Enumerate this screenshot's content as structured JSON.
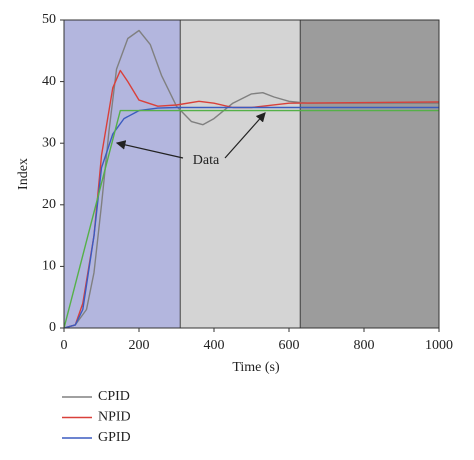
{
  "chart_data": {
    "type": "line",
    "x_label": "Time (s)",
    "y_label": "Index",
    "xlim": [
      0,
      1000
    ],
    "xticks": [
      0,
      200,
      400,
      600,
      800,
      1000
    ],
    "ylim": [
      0,
      50
    ],
    "yticks": [
      0,
      10,
      20,
      30,
      40,
      50
    ],
    "regions": [
      {
        "xlim": [
          0,
          310
        ],
        "color": "#b3b6de"
      },
      {
        "xlim": [
          310,
          630
        ],
        "color": "#d4d4d4"
      },
      {
        "xlim": [
          630,
          1000
        ],
        "color": "#9c9c9c"
      }
    ],
    "annotation": "Data",
    "series": [
      {
        "name": "CPID",
        "color": "#808080",
        "x": [
          0,
          30,
          60,
          80,
          100,
          120,
          140,
          170,
          200,
          230,
          260,
          300,
          340,
          370,
          400,
          450,
          500,
          530,
          560,
          600,
          650,
          1000
        ],
        "values": [
          0,
          0.5,
          3,
          9,
          20,
          32,
          42,
          47,
          48.3,
          46,
          41,
          36,
          33.5,
          33,
          34,
          36.5,
          38,
          38.2,
          37.5,
          36.8,
          36.5,
          36.5
        ]
      },
      {
        "name": "NPID",
        "color": "#d9403a",
        "x": [
          0,
          30,
          50,
          80,
          100,
          130,
          150,
          170,
          200,
          250,
          300,
          360,
          400,
          450,
          500,
          600,
          1000
        ],
        "values": [
          0,
          0.5,
          4,
          15,
          28,
          39,
          41.8,
          40,
          37,
          36,
          36.2,
          36.8,
          36.5,
          35.8,
          35.8,
          36.5,
          36.7
        ]
      },
      {
        "name": "GPID",
        "color": "#3b5bc0",
        "x": [
          0,
          30,
          50,
          80,
          100,
          130,
          160,
          200,
          250,
          300,
          1000
        ],
        "values": [
          0,
          0.5,
          3,
          15,
          26,
          31.5,
          34,
          35.3,
          35.7,
          35.8,
          35.8
        ]
      },
      {
        "color": "#55b048",
        "x": [
          0,
          150,
          1000
        ],
        "values": [
          0,
          35.3,
          35.3
        ]
      }
    ]
  }
}
